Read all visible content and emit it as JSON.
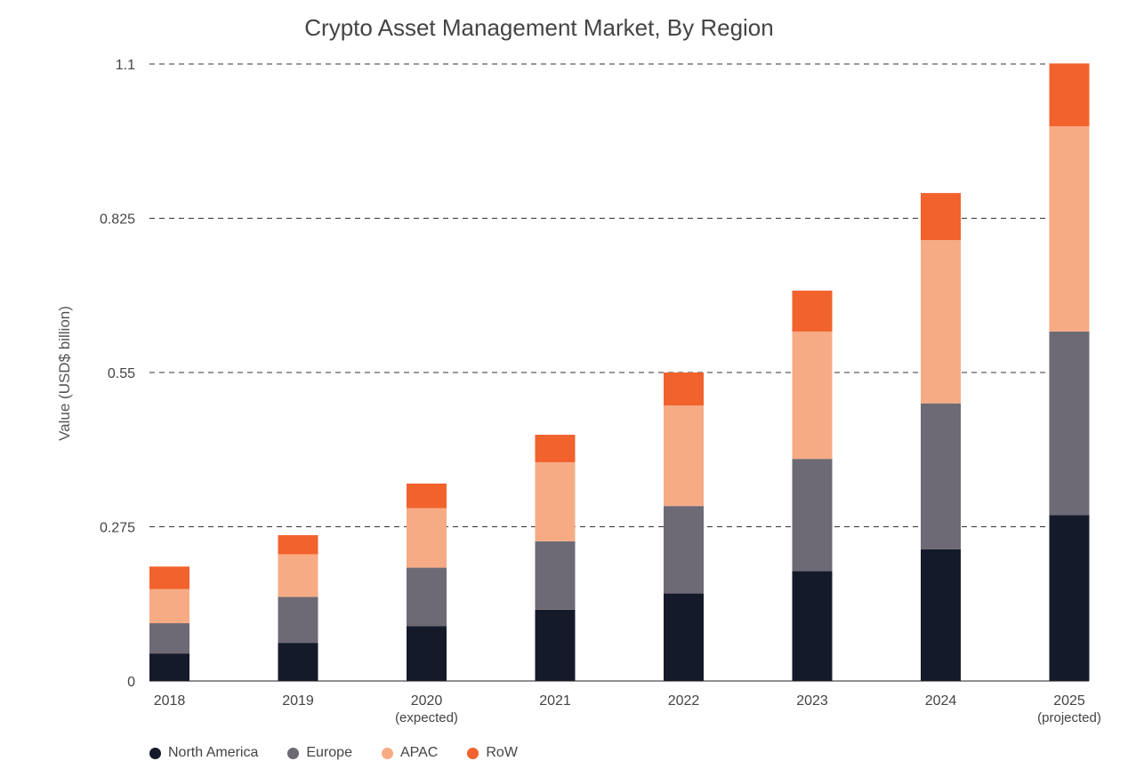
{
  "chart_data": {
    "type": "bar",
    "stacked": true,
    "title": "Crypto Asset Management Market, By Region",
    "ylabel": "Value (USD$ billion)",
    "xlabel": "",
    "ylim": [
      0,
      1.1
    ],
    "yticks": [
      "0",
      "0.275",
      "0.55",
      "0.825",
      "1.1"
    ],
    "ytick_values": [
      0,
      0.275,
      0.55,
      0.825,
      1.1
    ],
    "grid": "horizontal dashed",
    "legend_position": "bottom-left",
    "categories": [
      "2018",
      "2019",
      "2020",
      "2021",
      "2022",
      "2023",
      "2024",
      "2025"
    ],
    "category_sublabels": [
      "",
      "",
      "(expected)",
      "",
      "",
      "",
      "",
      "(projected)"
    ],
    "series": [
      {
        "name": "North America",
        "color": "#151a2b",
        "values": [
          0.049,
          0.068,
          0.098,
          0.127,
          0.156,
          0.196,
          0.235,
          0.296
        ]
      },
      {
        "name": "Europe",
        "color": "#6e6a75",
        "values": [
          0.054,
          0.082,
          0.104,
          0.122,
          0.156,
          0.2,
          0.26,
          0.327
        ]
      },
      {
        "name": "APAC",
        "color": "#f7ab85",
        "values": [
          0.061,
          0.076,
          0.106,
          0.141,
          0.179,
          0.227,
          0.291,
          0.366
        ]
      },
      {
        "name": "RoW",
        "color": "#f2622d",
        "values": [
          0.04,
          0.034,
          0.044,
          0.049,
          0.059,
          0.073,
          0.084,
          0.112
        ]
      }
    ]
  }
}
